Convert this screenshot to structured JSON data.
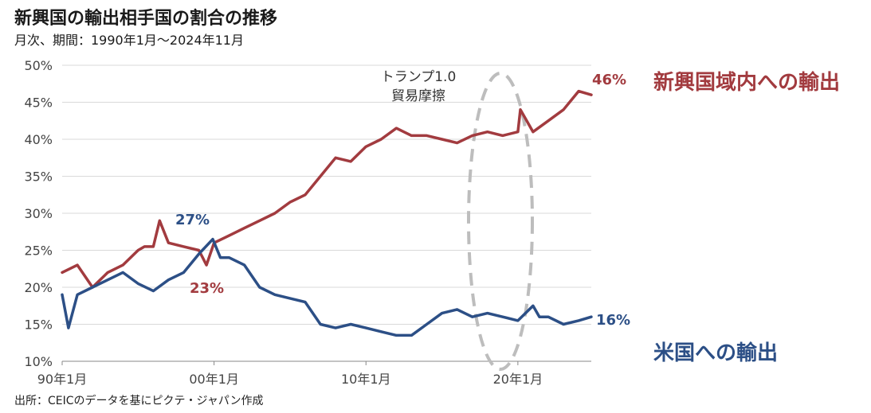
{
  "title": "新興国の輸出相手国の割合の推移",
  "subtitle": "月次、期間：1990年1月～2024年11月",
  "source": "出所：CEICのデータを基にピクテ・ジャパン作成",
  "annotation": {
    "line1": "トランプ1.0",
    "line2": "貿易摩擦"
  },
  "colors": {
    "series_intra": "#a23b3f",
    "series_us": "#2c4f86",
    "grid": "#d9d9d9",
    "ellipse": "#bdbdbd"
  },
  "chart_data": {
    "type": "line",
    "x_axis": {
      "tick_labels": [
        "90年1月",
        "00年1月",
        "10年1月",
        "20年1月"
      ],
      "tick_dates": [
        "1990-01",
        "2000-01",
        "2010-01",
        "2020-01"
      ],
      "range": [
        "1990-01",
        "2024-11"
      ]
    },
    "y_axis": {
      "tick_labels": [
        "10%",
        "15%",
        "20%",
        "25%",
        "30%",
        "35%",
        "40%",
        "45%",
        "50%"
      ],
      "ylim": [
        10,
        50
      ],
      "unit": "%"
    },
    "grid": true,
    "series": [
      {
        "name": "新興国域内への輸出",
        "color": "#a23b3f",
        "x": [
          "1990-01",
          "1991-01",
          "1992-01",
          "1993-01",
          "1994-01",
          "1995-01",
          "1995-06",
          "1996-01",
          "1996-06",
          "1997-01",
          "1998-01",
          "1999-01",
          "1999-07",
          "2000-01",
          "2001-01",
          "2002-01",
          "2003-01",
          "2004-01",
          "2005-01",
          "2006-01",
          "2007-01",
          "2008-01",
          "2009-01",
          "2010-01",
          "2011-01",
          "2012-01",
          "2013-01",
          "2014-01",
          "2015-01",
          "2016-01",
          "2017-01",
          "2018-01",
          "2019-01",
          "2020-01",
          "2020-03",
          "2021-01",
          "2022-01",
          "2023-01",
          "2024-01",
          "2024-11"
        ],
        "y": [
          22,
          23,
          20,
          22,
          23,
          25,
          25.5,
          25.5,
          29,
          26,
          25.5,
          25,
          23,
          26,
          27,
          28,
          29,
          30,
          31.5,
          32.5,
          35,
          37.5,
          37,
          39,
          40,
          41.5,
          40.5,
          40.5,
          40,
          39.5,
          40.5,
          41,
          40.5,
          41,
          44,
          41,
          42.5,
          44,
          46.5,
          46
        ]
      },
      {
        "name": "米国への輸出",
        "color": "#2c4f86",
        "x": [
          "1990-01",
          "1990-06",
          "1991-01",
          "1992-01",
          "1993-01",
          "1994-01",
          "1995-01",
          "1996-01",
          "1997-01",
          "1998-01",
          "1999-01",
          "1999-12",
          "2000-06",
          "2001-01",
          "2002-01",
          "2003-01",
          "2004-01",
          "2005-01",
          "2006-01",
          "2007-01",
          "2008-01",
          "2009-01",
          "2010-01",
          "2011-01",
          "2012-01",
          "2013-01",
          "2014-01",
          "2015-01",
          "2016-01",
          "2017-01",
          "2018-01",
          "2019-01",
          "2020-01",
          "2021-01",
          "2021-06",
          "2022-01",
          "2023-01",
          "2024-01",
          "2024-11"
        ],
        "y": [
          19,
          14.5,
          19,
          20,
          21,
          22,
          20.5,
          19.5,
          21,
          22,
          24.5,
          26.5,
          24,
          24,
          23,
          20,
          19,
          18.5,
          18,
          15,
          14.5,
          15,
          14.5,
          14,
          13.5,
          13.5,
          15,
          16.5,
          17,
          16,
          16.5,
          16,
          15.5,
          17.5,
          16,
          16,
          15,
          15.5,
          16
        ]
      }
    ],
    "data_labels": [
      {
        "text": "27%",
        "series": "米国への輸出"
      },
      {
        "text": "23%",
        "series": "新興国域内への輸出"
      },
      {
        "text": "46%",
        "series": "新興国域内への輸出"
      },
      {
        "text": "16%",
        "series": "米国への輸出"
      }
    ]
  }
}
